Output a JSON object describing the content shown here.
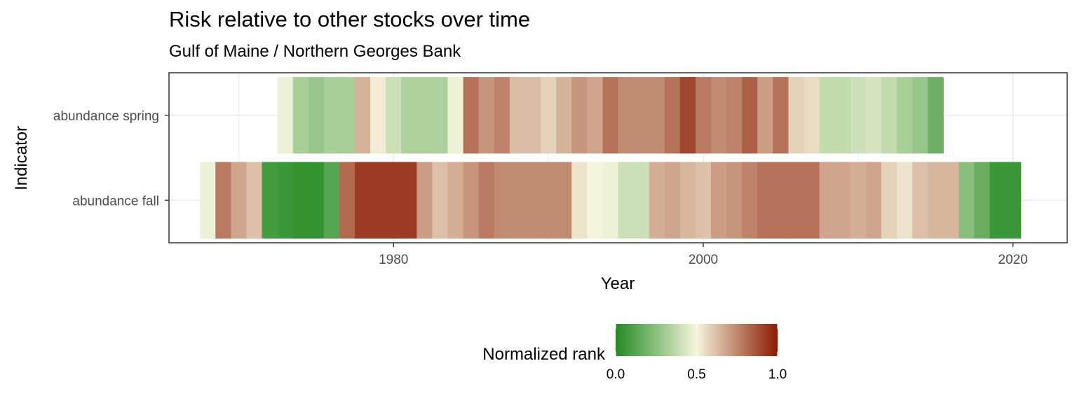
{
  "chart_data": {
    "type": "heatmap",
    "title": "Risk relative to other stocks over time",
    "subtitle": "Gulf of Maine / Northern Georges Bank",
    "xlabel": "Year",
    "ylabel": "Indicator",
    "xlim": [
      1965.5,
      2023.5
    ],
    "x_ticks": [
      "1980",
      "2000",
      "2020"
    ],
    "grid": true,
    "colors": {
      "low": "#228B22",
      "mid": "#F5F5DC",
      "high": "#8B1A00"
    },
    "legend": {
      "title": "Normalized rank",
      "position": "bottom",
      "ticks": [
        "0.0",
        "0.5",
        "1.0"
      ]
    },
    "series": [
      {
        "name": "abundance spring",
        "start_year": 1973,
        "values": [
          0.48,
          0.32,
          0.28,
          0.32,
          0.32,
          0.65,
          0.52,
          0.4,
          0.33,
          0.33,
          0.33,
          0.48,
          0.8,
          0.72,
          0.76,
          0.63,
          0.63,
          0.58,
          0.65,
          0.72,
          0.68,
          0.8,
          0.74,
          0.74,
          0.74,
          0.8,
          0.9,
          0.78,
          0.74,
          0.76,
          0.84,
          0.7,
          0.8,
          0.58,
          0.56,
          0.38,
          0.38,
          0.4,
          0.42,
          0.38,
          0.32,
          0.28,
          0.18
        ]
      },
      {
        "name": "abundance fall",
        "start_year": 1968,
        "values": [
          0.48,
          0.78,
          0.68,
          0.62,
          0.08,
          0.06,
          0.04,
          0.04,
          0.12,
          0.82,
          0.92,
          0.92,
          0.92,
          0.92,
          0.7,
          0.62,
          0.66,
          0.72,
          0.78,
          0.74,
          0.74,
          0.74,
          0.74,
          0.74,
          0.54,
          0.5,
          0.48,
          0.4,
          0.4,
          0.66,
          0.68,
          0.64,
          0.62,
          0.7,
          0.72,
          0.76,
          0.8,
          0.8,
          0.8,
          0.8,
          0.68,
          0.68,
          0.66,
          0.68,
          0.58,
          0.54,
          0.62,
          0.64,
          0.64,
          0.24,
          0.16,
          0.06,
          0.06
        ]
      }
    ]
  }
}
